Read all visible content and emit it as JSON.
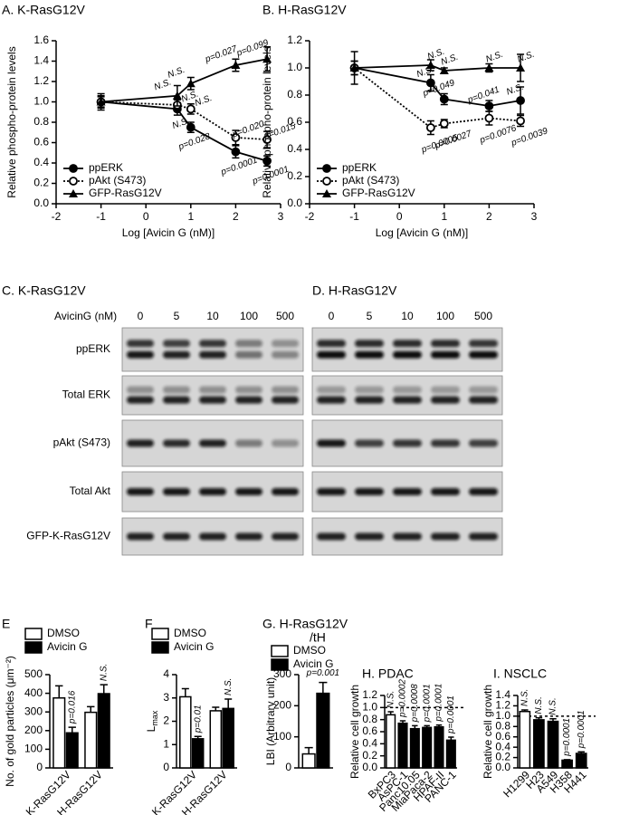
{
  "chart_data": [
    {
      "type": "line",
      "title": "A. K-RasG12V",
      "xlabel": "Log [Avicin G (nM)]",
      "ylabel": "Relative phospho-protein levels",
      "x": [
        -1,
        0.699,
        1,
        2,
        2.699
      ],
      "xlim": [
        -2,
        3
      ],
      "xticks": [
        -2,
        -1,
        0,
        1,
        2,
        3
      ],
      "ylim": [
        0,
        1.6
      ],
      "yticks": [
        {
          "value": 0,
          "label": "0.0"
        },
        {
          "value": 0.2,
          "label": "0.2"
        },
        {
          "value": 0.4,
          "label": "0.4"
        },
        {
          "value": 0.6,
          "label": "0.6"
        },
        {
          "value": 0.8,
          "label": "0.8"
        },
        {
          "value": 1,
          "label": "1.0"
        },
        {
          "value": 1.2,
          "label": "1.2"
        },
        {
          "value": 1.4,
          "label": "1.4"
        },
        {
          "value": 1.6,
          "label": "1.6"
        }
      ],
      "series": [
        {
          "name": "ppERK",
          "color": "#000000",
          "marker": "filled-circle",
          "line_style": "solid",
          "values": [
            1.0,
            0.93,
            0.75,
            0.51,
            0.42
          ],
          "errors": [
            0.08,
            0.06,
            0.05,
            0.06,
            0.05
          ],
          "point_labels": [
            null,
            "N.S.",
            "p=0.028",
            "p=0.0001",
            "p=0.0001"
          ]
        },
        {
          "name": "pAkt (S473)",
          "color": "#000000",
          "marker": "open-circle",
          "line_style": "dotted",
          "values": [
            1.0,
            0.97,
            0.93,
            0.65,
            0.63
          ],
          "errors": [
            0.06,
            0.05,
            0.05,
            0.07,
            0.08
          ],
          "point_labels": [
            null,
            "N.S.",
            "N.S.",
            "p=0.020",
            "p=0.015"
          ]
        },
        {
          "name": "GFP-RasG12V",
          "color": "#000000",
          "marker": "triangle",
          "line_style": "solid",
          "values": [
            1.0,
            1.06,
            1.18,
            1.36,
            1.42
          ],
          "errors": [
            0.05,
            0.1,
            0.06,
            0.06,
            0.12
          ],
          "point_labels": [
            null,
            "N.S.",
            "N.S.",
            "p=0.027",
            "p=0.099"
          ]
        }
      ]
    },
    {
      "type": "line",
      "title": "B. H-RasG12V",
      "xlabel": "Log [Avicin G (nM)]",
      "ylabel": "Relative phospho-protein levels",
      "x": [
        -1,
        0.699,
        1,
        2,
        2.699
      ],
      "xlim": [
        -2,
        3
      ],
      "xticks": [
        -2,
        -1,
        0,
        1,
        2,
        3
      ],
      "ylim": [
        0,
        1.2
      ],
      "yticks": [
        {
          "value": 0,
          "label": "0.0"
        },
        {
          "value": 0.2,
          "label": "0.2"
        },
        {
          "value": 0.4,
          "label": "0.4"
        },
        {
          "value": 0.6,
          "label": "0.6"
        },
        {
          "value": 0.8,
          "label": "0.8"
        },
        {
          "value": 1,
          "label": "1.0"
        },
        {
          "value": 1.2,
          "label": "1.2"
        }
      ],
      "series": [
        {
          "name": "ppERK",
          "color": "#000000",
          "marker": "filled-circle",
          "line_style": "solid",
          "values": [
            1.0,
            0.89,
            0.77,
            0.72,
            0.76
          ],
          "errors": [
            0.12,
            0.06,
            0.04,
            0.04,
            0.1
          ],
          "point_labels": [
            null,
            "N.S.",
            "p=0.049",
            "p=0.041",
            "N.S."
          ]
        },
        {
          "name": "pAkt (S473)",
          "color": "#000000",
          "marker": "open-circle",
          "line_style": "dotted",
          "values": [
            1.0,
            0.56,
            0.59,
            0.63,
            0.61
          ],
          "errors": [
            0.05,
            0.05,
            0.03,
            0.05,
            0.04
          ],
          "point_labels": [
            null,
            "p=0.0005",
            "p=0.0027",
            "p=0.0076",
            "p=0.0039"
          ]
        },
        {
          "name": "GFP-RasG12V",
          "color": "#000000",
          "marker": "triangle",
          "line_style": "solid",
          "values": [
            1.0,
            1.02,
            0.98,
            1.0,
            1.0
          ],
          "errors": [
            0.05,
            0.04,
            0.02,
            0.03,
            0.1
          ],
          "point_labels": [
            null,
            "N.S.",
            "N.S.",
            "N.S.",
            "N.S."
          ]
        }
      ]
    },
    {
      "type": "bar",
      "title": "E",
      "ylabel": "No. of gold particles (μm⁻²)",
      "categories": [
        "K-RasG12V",
        "H-RasG12V"
      ],
      "ylim": [
        0,
        500
      ],
      "yticks": [
        0,
        100,
        200,
        300,
        400,
        500
      ],
      "series": [
        {
          "name": "DMSO",
          "color": "#ffffff",
          "values": [
            375,
            298
          ],
          "errors": [
            65,
            30
          ]
        },
        {
          "name": "Avicin G",
          "color": "#000000",
          "values": [
            188,
            398
          ],
          "errors": [
            30,
            48
          ],
          "point_labels": [
            "p=0.016",
            "N.S."
          ]
        }
      ]
    },
    {
      "type": "bar",
      "title": "F",
      "ylabel": "L",
      "ylabel_subscript": "max",
      "categories": [
        "K-RasG12V",
        "H-RasG12V"
      ],
      "ylim": [
        0,
        4
      ],
      "yticks": [
        0,
        1,
        2,
        3,
        4
      ],
      "series": [
        {
          "name": "DMSO",
          "color": "#ffffff",
          "values": [
            3.05,
            2.45
          ],
          "errors": [
            0.35,
            0.15
          ]
        },
        {
          "name": "Avicin G",
          "color": "#000000",
          "values": [
            1.25,
            2.55
          ],
          "errors": [
            0.1,
            0.4
          ],
          "point_labels": [
            "p=0.01",
            "N.S."
          ]
        }
      ]
    },
    {
      "type": "bar",
      "title": [
        "G. H-RasG12V",
        "/tH"
      ],
      "ylabel": "LBI (Arbitrary unit)",
      "categories": [
        null
      ],
      "ylim": [
        0,
        300
      ],
      "yticks": [
        0,
        100,
        200,
        300
      ],
      "series": [
        {
          "name": "DMSO",
          "color": "#ffffff",
          "values": [
            45
          ],
          "errors": [
            20
          ]
        },
        {
          "name": "Avicin G",
          "color": "#000000",
          "values": [
            240
          ],
          "errors": [
            35
          ],
          "point_labels": [
            "p=0.001"
          ]
        }
      ]
    },
    {
      "type": "bar",
      "title": "H. PDAC",
      "ylabel": "Relative cell growth",
      "categories": [
        "BxPC3",
        "AsPC-1",
        "Panc10.05",
        "MiaPaca-2",
        "HPAF-II",
        "PANC-1"
      ],
      "values": [
        0.88,
        0.74,
        0.65,
        0.67,
        0.68,
        0.46
      ],
      "errors": [
        0.05,
        0.04,
        0.05,
        0.03,
        0.03,
        0.05
      ],
      "colors": [
        "#ffffff",
        "#000000",
        "#000000",
        "#000000",
        "#000000",
        "#000000"
      ],
      "point_labels": [
        "N.S.",
        "p=0.0002",
        "p=0.0008",
        "p=0.0001",
        "p=0.0001",
        "p=0.0001"
      ],
      "hline": 1,
      "ylim": [
        0,
        1.2
      ],
      "yticks": [
        {
          "value": 0,
          "label": "0.0"
        },
        {
          "value": 0.2,
          "label": "0.2"
        },
        {
          "value": 0.4,
          "label": "0.4"
        },
        {
          "value": 0.6,
          "label": "0.6"
        },
        {
          "value": 0.8,
          "label": "0.8"
        },
        {
          "value": 1,
          "label": "1.0"
        },
        {
          "value": 1.2,
          "label": "1.2"
        }
      ]
    },
    {
      "type": "bar",
      "title": "I. NSCLC",
      "ylabel": "Relative cell growth",
      "categories": [
        "H1299",
        "H23",
        "A549",
        "H358",
        "H441"
      ],
      "values": [
        1.09,
        0.93,
        0.9,
        0.15,
        0.28
      ],
      "errors": [
        0.03,
        0.04,
        0.05,
        0.01,
        0.03
      ],
      "colors": [
        "#ffffff",
        "#000000",
        "#000000",
        "#000000",
        "#000000"
      ],
      "point_labels": [
        "N.S.",
        "N.S.",
        "N.S.",
        "p=0.0001",
        "p=0.0001"
      ],
      "hline": 1,
      "ylim": [
        0,
        1.4
      ],
      "yticks": [
        {
          "value": 0,
          "label": "0.0"
        },
        {
          "value": 0.2,
          "label": "0.2"
        },
        {
          "value": 0.4,
          "label": "0.4"
        },
        {
          "value": 0.6,
          "label": "0.6"
        },
        {
          "value": 0.8,
          "label": "0.8"
        },
        {
          "value": 1,
          "label": "1.0"
        },
        {
          "value": 1.2,
          "label": "1.2"
        },
        {
          "value": 1.4,
          "label": "1.4"
        }
      ]
    }
  ],
  "blots": [
    {
      "title": "C. K-RasG12V",
      "dose_label": "AvicinG (nM)",
      "lanes": [
        "0",
        "5",
        "10",
        "100",
        "500"
      ],
      "rows": [
        "ppERK",
        "Total ERK",
        "pAkt (S473)",
        "Total Akt",
        "GFP-K-RasG12V"
      ]
    },
    {
      "title": "D. H-RasG12V",
      "lanes": [
        "0",
        "5",
        "10",
        "100",
        "500"
      ]
    }
  ]
}
